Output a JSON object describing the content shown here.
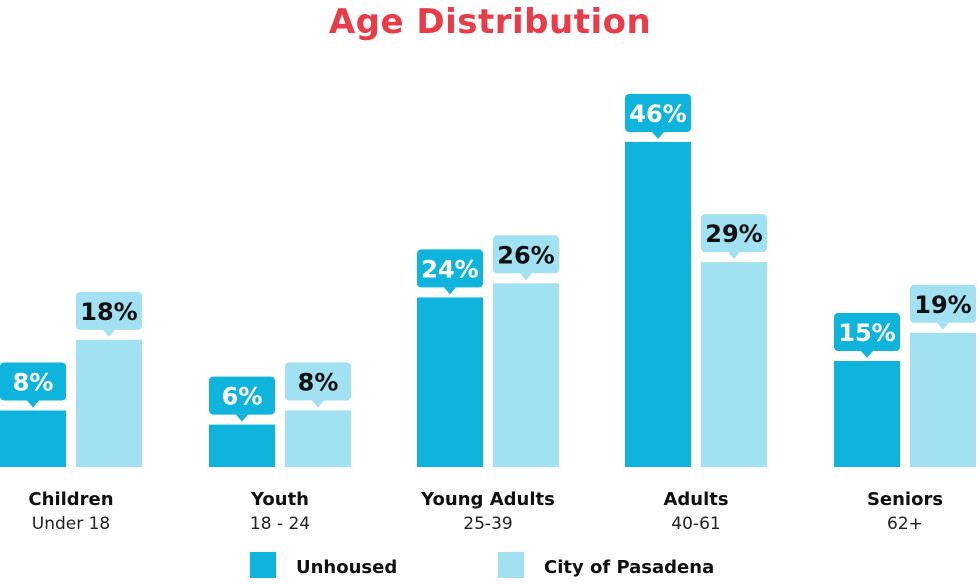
{
  "chart_data": {
    "type": "bar",
    "title": "Age Distribution",
    "categories": [
      {
        "name": "Children",
        "sub": "Under 18"
      },
      {
        "name": "Youth",
        "sub": "18 - 24"
      },
      {
        "name": "Young Adults",
        "sub": "25-39"
      },
      {
        "name": "Adults",
        "sub": "40-61"
      },
      {
        "name": "Seniors",
        "sub": "62+"
      }
    ],
    "series": [
      {
        "name": "Unhoused",
        "color": "#0fb4dc",
        "values": [
          8,
          6,
          24,
          46,
          15
        ],
        "labels": [
          "8%",
          "6%",
          "24%",
          "46%",
          "15%"
        ]
      },
      {
        "name": "City of Pasadena",
        "color": "#a2e1f1",
        "values": [
          18,
          8,
          26,
          29,
          19
        ],
        "labels": [
          "18%",
          "8%",
          "26%",
          "29%",
          "19%"
        ]
      }
    ],
    "ylim": [
      0,
      46
    ],
    "grid": false,
    "legend_placement": "bottom-center"
  }
}
